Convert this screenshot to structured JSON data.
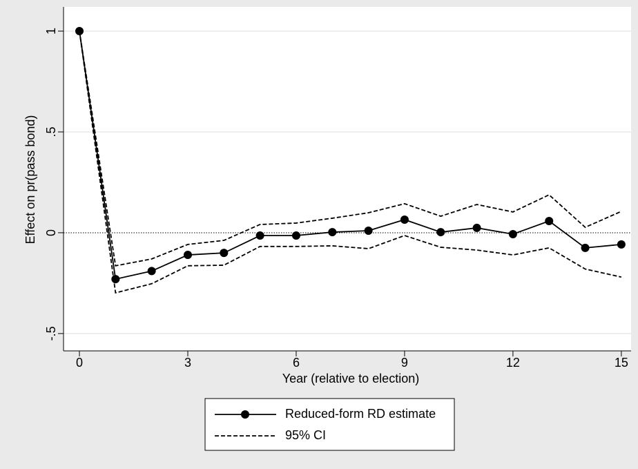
{
  "chart_data": {
    "type": "line",
    "x_label": "Year (relative to election)",
    "y_label": "Effect on pr(pass bond)",
    "x": [
      0,
      1,
      2,
      3,
      4,
      5,
      6,
      7,
      8,
      9,
      10,
      11,
      12,
      13,
      14,
      15
    ],
    "series": [
      {
        "name": "Reduced-form RD estimate",
        "color": "#000000",
        "style": "solid",
        "marker": true,
        "values": [
          1,
          -0.23,
          -0.19,
          -0.11,
          -0.1,
          -0.014,
          -0.014,
          0.003,
          0.01,
          0.065,
          0.003,
          0.024,
          -0.007,
          0.058,
          -0.075,
          -0.058
        ]
      },
      {
        "name": "95% CI",
        "color": "#000000",
        "style": "dashed",
        "marker": false,
        "values": [
          1,
          -0.164,
          -0.13,
          -0.058,
          -0.038,
          0.041,
          0.048,
          0.072,
          0.099,
          0.144,
          0.082,
          0.14,
          0.103,
          0.188,
          0.027,
          0.106
        ],
        "lower": [
          1,
          -0.298,
          -0.253,
          -0.164,
          -0.161,
          -0.068,
          -0.068,
          -0.065,
          -0.079,
          -0.014,
          -0.072,
          -0.086,
          -0.11,
          -0.075,
          -0.18,
          -0.22
        ]
      }
    ],
    "xlim": [
      -0.44,
      15.27
    ],
    "ylim": [
      -0.586,
      1.12
    ],
    "xticks": [
      0,
      3,
      6,
      9,
      12,
      15
    ],
    "yticks": [
      {
        "value": -0.5,
        "label": "-.5"
      },
      0,
      {
        "value": 0.5,
        "label": ".5"
      },
      1
    ],
    "grid": true,
    "reference_line": 0
  }
}
